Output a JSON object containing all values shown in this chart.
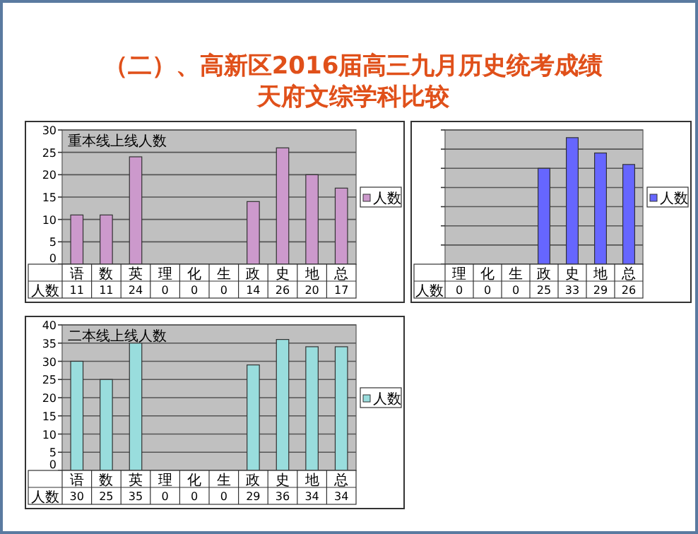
{
  "chart_data": [
    {
      "type": "other",
      "title": "（二）、高新区2016届高三九月历史统考成绩",
      "subtitle": "天府文综学科比较"
    },
    {
      "type": "bar",
      "title": "重本线上线人数",
      "categories": [
        "语",
        "数",
        "英",
        "理",
        "化",
        "生",
        "政",
        "史",
        "地",
        "总"
      ],
      "series": [
        {
          "name": "人数",
          "color": "#cc99cc",
          "values": [
            11,
            11,
            24,
            0,
            0,
            0,
            14,
            26,
            20,
            17
          ]
        }
      ],
      "ylim": [
        0,
        30
      ],
      "yticks": [
        0,
        5,
        10,
        15,
        20,
        25,
        30
      ],
      "grid": "y",
      "legend": "right",
      "data_labels": true
    },
    {
      "type": "bar",
      "categories": [
        "理",
        "化",
        "生",
        "政",
        "史",
        "地",
        "总"
      ],
      "series": [
        {
          "name": "人数",
          "color": "#6666ff",
          "values": [
            0,
            0,
            0,
            25,
            33,
            29,
            26
          ]
        }
      ],
      "ylim": [
        0,
        35
      ],
      "yticks": [
        {
          "value": 0,
          "label": null
        },
        {
          "value": 5,
          "label": null
        },
        {
          "value": 10,
          "label": null
        },
        {
          "value": 15,
          "label": null
        },
        {
          "value": 20,
          "label": null
        },
        {
          "value": 25,
          "label": null
        },
        {
          "value": 30,
          "label": null
        },
        {
          "value": 35,
          "label": null
        }
      ],
      "tick_labels": "x",
      "grid": "y",
      "legend": "right",
      "data_labels": true
    },
    {
      "type": "bar",
      "title": "二本线上线人数",
      "categories": [
        "语",
        "数",
        "英",
        "理",
        "化",
        "生",
        "政",
        "史",
        "地",
        "总"
      ],
      "series": [
        {
          "name": "人数",
          "color": "#99dddd",
          "values": [
            30,
            25,
            35,
            0,
            0,
            0,
            29,
            36,
            34,
            34
          ]
        }
      ],
      "ylim": [
        0,
        40
      ],
      "yticks": [
        0,
        5,
        10,
        15,
        20,
        25,
        30,
        35,
        40
      ],
      "grid": "y",
      "legend": "right",
      "data_labels": true
    }
  ]
}
